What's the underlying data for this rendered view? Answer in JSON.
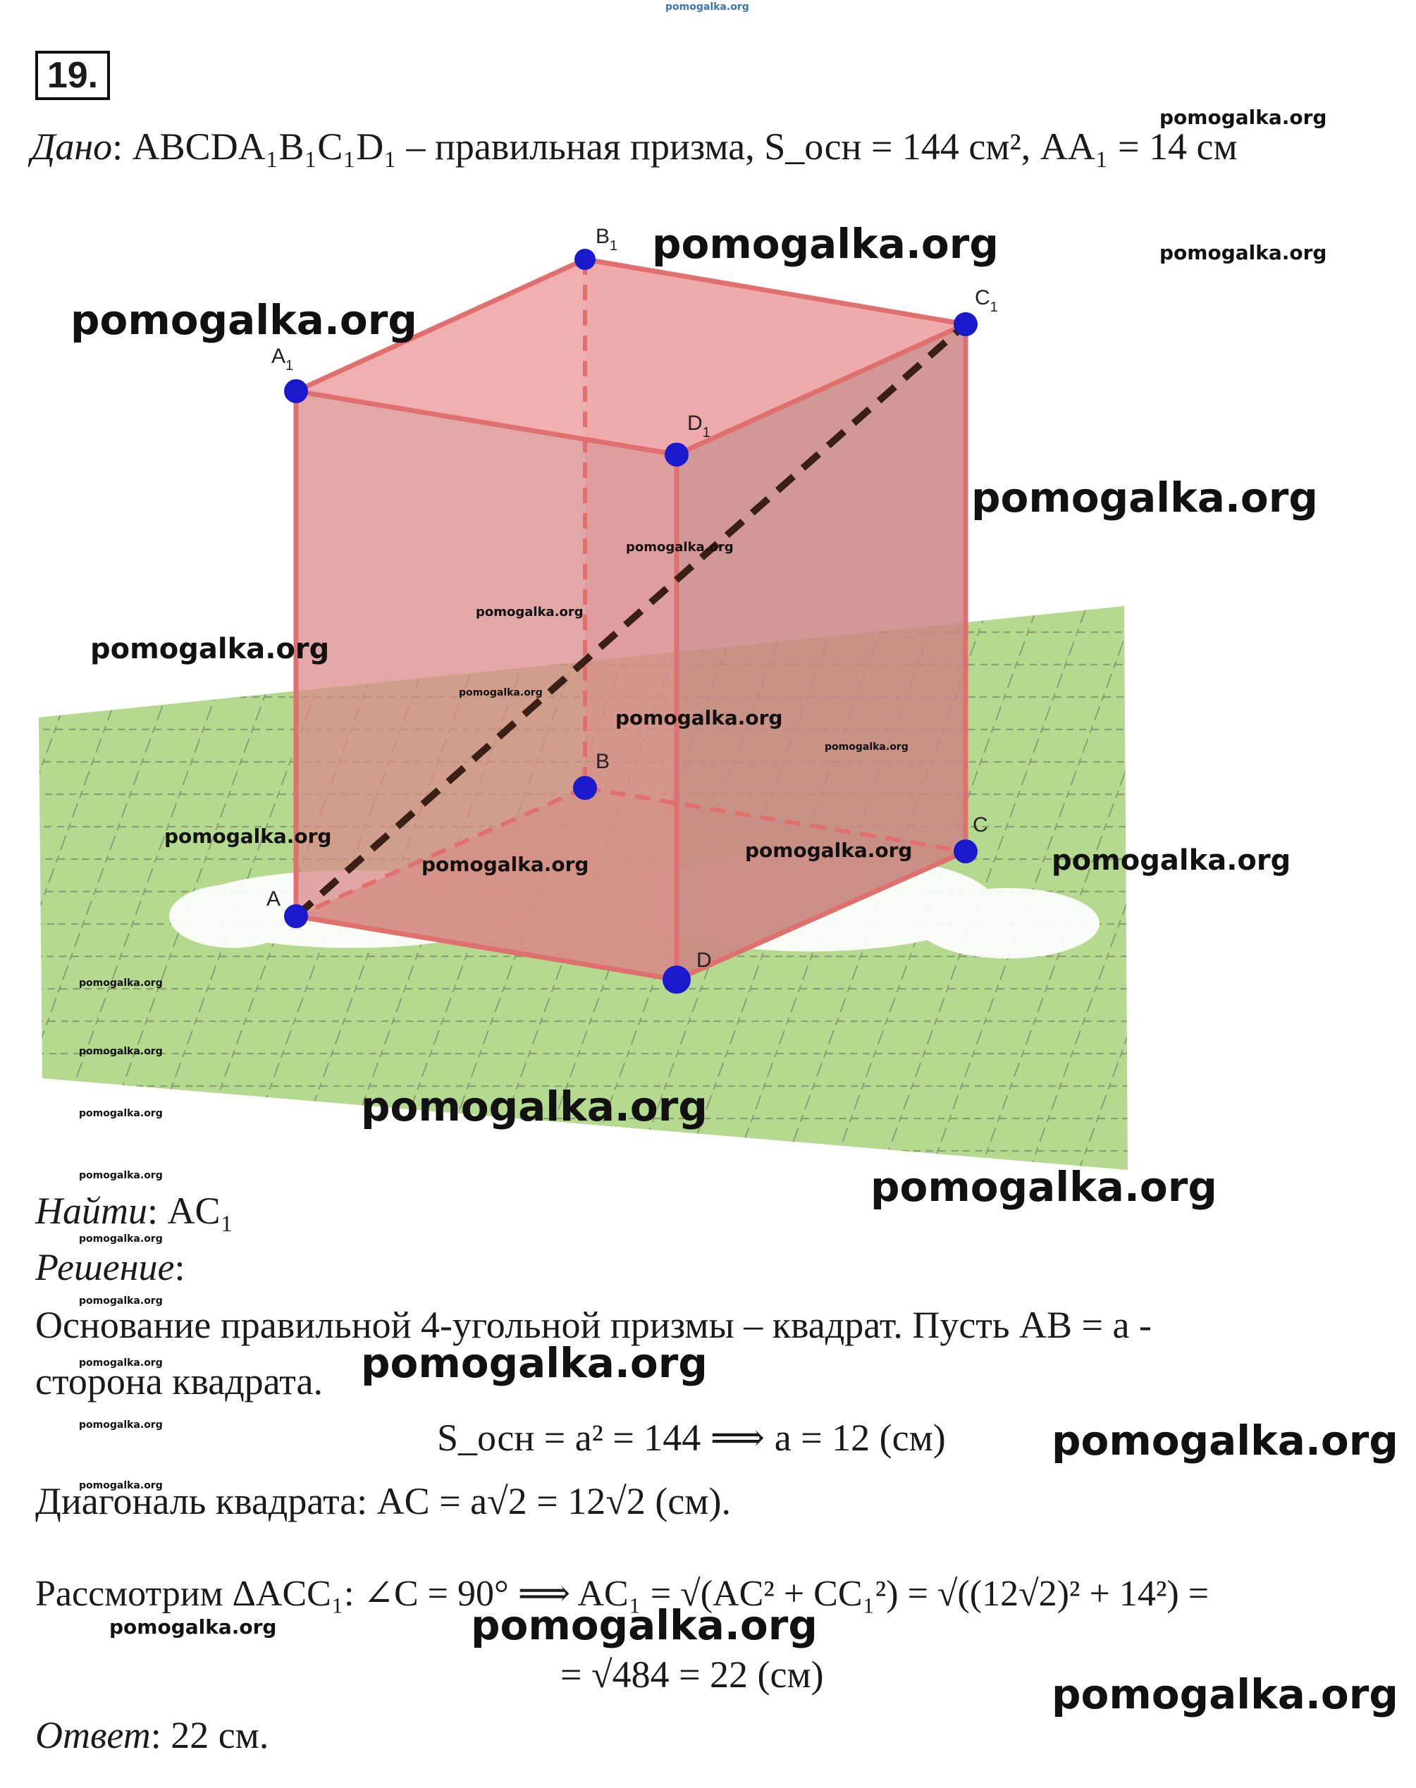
{
  "site_watermark_top": "pomogalka.org",
  "problem_number": "19.",
  "given": {
    "label": "Дано",
    "text": ": ABCDA₁B₁C₁D₁ – правильная призма, S_осн = 144 см², AA₁ = 14 см"
  },
  "figure": {
    "vertices": [
      "A",
      "B",
      "C",
      "D",
      "A1",
      "B1",
      "C1",
      "D1"
    ],
    "vertex_labels": {
      "A": "A",
      "B": "B",
      "C": "C",
      "D": "D",
      "A1": "A",
      "B1": "B",
      "C1": "C",
      "D1": "D",
      "sub": "1"
    },
    "colors": {
      "prism_face": "#d98a8a",
      "prism_edge": "#e07070",
      "base": "#c9a27f",
      "plane": "#b5d98f",
      "vertex": "#1a1acc",
      "diagonal": "#3a1f14"
    }
  },
  "find": {
    "label": "Найти",
    "text": ": AC₁"
  },
  "solution": {
    "label": "Решение",
    "colon": ":",
    "line1": "Основание правильной 4-угольной призмы – квадрат. Пусть AB = a -",
    "line2": "сторона квадрата.",
    "eq1": "S_осн = a² = 144 ⟹ a = 12 (см)",
    "line3": "Диагональ квадрата: AC = a√2 = 12√2 (см).",
    "line4": "Рассмотрим ΔACC₁: ∠C = 90° ⟹ AC₁ = √(AC² + CC₁²) = √((12√2)² + 14²) =",
    "line5": "= √484 = 22 (см)"
  },
  "answer": {
    "label": "Ответ",
    "text": ": 22 см."
  },
  "watermark": "pomogalka.org"
}
